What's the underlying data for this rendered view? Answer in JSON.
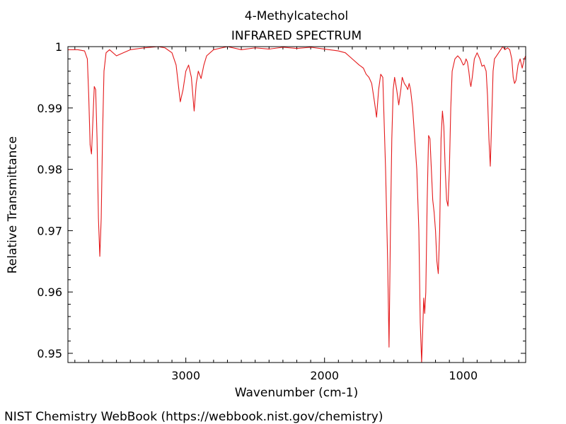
{
  "chart_data": {
    "type": "line",
    "title": "4-Methylcatechol",
    "subtitle": "INFRARED SPECTRUM",
    "xlabel": "Wavenumber (cm-1)",
    "ylabel": "Relative Transmittance",
    "xlim": [
      3850,
      550
    ],
    "ylim": [
      0.9485,
      1.0
    ],
    "x_reversed": true,
    "xticks": [
      3000,
      2000,
      1000
    ],
    "yticks": [
      0.95,
      0.96,
      0.97,
      0.98,
      0.99,
      1.0
    ],
    "ytick_labels": [
      "0.95",
      "0.96",
      "0.97",
      "0.98",
      "0.99",
      "1"
    ],
    "grid": false,
    "series": [
      {
        "color": "#e41a1c",
        "points": [
          [
            3850,
            0.9995
          ],
          [
            3780,
            0.9995
          ],
          [
            3730,
            0.9993
          ],
          [
            3710,
            0.998
          ],
          [
            3700,
            0.992
          ],
          [
            3690,
            0.984
          ],
          [
            3680,
            0.9825
          ],
          [
            3670,
            0.988
          ],
          [
            3660,
            0.9935
          ],
          [
            3650,
            0.993
          ],
          [
            3640,
            0.985
          ],
          [
            3630,
            0.972
          ],
          [
            3620,
            0.9658
          ],
          [
            3610,
            0.972
          ],
          [
            3600,
            0.986
          ],
          [
            3590,
            0.996
          ],
          [
            3575,
            0.999
          ],
          [
            3550,
            0.9995
          ],
          [
            3500,
            0.9985
          ],
          [
            3450,
            0.999
          ],
          [
            3400,
            0.9995
          ],
          [
            3300,
            0.9998
          ],
          [
            3200,
            1.0
          ],
          [
            3150,
            0.9998
          ],
          [
            3100,
            0.999
          ],
          [
            3070,
            0.997
          ],
          [
            3050,
            0.993
          ],
          [
            3040,
            0.991
          ],
          [
            3020,
            0.993
          ],
          [
            3000,
            0.996
          ],
          [
            2980,
            0.997
          ],
          [
            2960,
            0.995
          ],
          [
            2940,
            0.9895
          ],
          [
            2925,
            0.994
          ],
          [
            2910,
            0.996
          ],
          [
            2890,
            0.9948
          ],
          [
            2870,
            0.997
          ],
          [
            2850,
            0.9985
          ],
          [
            2800,
            0.9995
          ],
          [
            2700,
            1.0
          ],
          [
            2600,
            0.9995
          ],
          [
            2500,
            0.9998
          ],
          [
            2400,
            0.9996
          ],
          [
            2300,
            0.9999
          ],
          [
            2200,
            0.9997
          ],
          [
            2100,
            0.9999
          ],
          [
            2000,
            0.9996
          ],
          [
            1900,
            0.9993
          ],
          [
            1850,
            0.999
          ],
          [
            1800,
            0.998
          ],
          [
            1750,
            0.997
          ],
          [
            1720,
            0.9965
          ],
          [
            1700,
            0.9955
          ],
          [
            1680,
            0.995
          ],
          [
            1660,
            0.994
          ],
          [
            1640,
            0.991
          ],
          [
            1625,
            0.9885
          ],
          [
            1610,
            0.993
          ],
          [
            1595,
            0.9955
          ],
          [
            1580,
            0.995
          ],
          [
            1560,
            0.98
          ],
          [
            1545,
            0.965
          ],
          [
            1535,
            0.951
          ],
          [
            1525,
            0.97
          ],
          [
            1515,
            0.985
          ],
          [
            1505,
            0.993
          ],
          [
            1495,
            0.995
          ],
          [
            1480,
            0.993
          ],
          [
            1465,
            0.9905
          ],
          [
            1450,
            0.993
          ],
          [
            1440,
            0.995
          ],
          [
            1425,
            0.994
          ],
          [
            1410,
            0.9935
          ],
          [
            1400,
            0.993
          ],
          [
            1390,
            0.994
          ],
          [
            1380,
            0.993
          ],
          [
            1365,
            0.99
          ],
          [
            1350,
            0.985
          ],
          [
            1335,
            0.98
          ],
          [
            1320,
            0.97
          ],
          [
            1310,
            0.955
          ],
          [
            1300,
            0.9485
          ],
          [
            1292,
            0.954
          ],
          [
            1285,
            0.959
          ],
          [
            1278,
            0.9565
          ],
          [
            1270,
            0.96
          ],
          [
            1260,
            0.975
          ],
          [
            1250,
            0.9855
          ],
          [
            1240,
            0.985
          ],
          [
            1230,
            0.98
          ],
          [
            1220,
            0.975
          ],
          [
            1210,
            0.973
          ],
          [
            1200,
            0.97
          ],
          [
            1190,
            0.965
          ],
          [
            1180,
            0.963
          ],
          [
            1170,
            0.97
          ],
          [
            1160,
            0.985
          ],
          [
            1150,
            0.9895
          ],
          [
            1140,
            0.987
          ],
          [
            1130,
            0.98
          ],
          [
            1120,
            0.975
          ],
          [
            1110,
            0.974
          ],
          [
            1100,
            0.98
          ],
          [
            1090,
            0.99
          ],
          [
            1080,
            0.996
          ],
          [
            1060,
            0.998
          ],
          [
            1040,
            0.9985
          ],
          [
            1020,
            0.998
          ],
          [
            1000,
            0.997
          ],
          [
            990,
            0.9972
          ],
          [
            980,
            0.998
          ],
          [
            970,
            0.9975
          ],
          [
            960,
            0.996
          ],
          [
            950,
            0.994
          ],
          [
            945,
            0.9935
          ],
          [
            935,
            0.995
          ],
          [
            920,
            0.998
          ],
          [
            900,
            0.999
          ],
          [
            880,
            0.998
          ],
          [
            865,
            0.9968
          ],
          [
            850,
            0.997
          ],
          [
            835,
            0.996
          ],
          [
            825,
            0.992
          ],
          [
            815,
            0.985
          ],
          [
            805,
            0.9805
          ],
          [
            795,
            0.988
          ],
          [
            785,
            0.996
          ],
          [
            775,
            0.998
          ],
          [
            760,
            0.9985
          ],
          [
            745,
            0.999
          ],
          [
            730,
            0.9995
          ],
          [
            715,
            1.0
          ],
          [
            700,
            0.9995
          ],
          [
            680,
            0.9998
          ],
          [
            665,
            0.9995
          ],
          [
            650,
            0.998
          ],
          [
            640,
            0.995
          ],
          [
            630,
            0.994
          ],
          [
            620,
            0.9945
          ],
          [
            605,
            0.997
          ],
          [
            590,
            0.998
          ],
          [
            575,
            0.9965
          ],
          [
            560,
            0.998
          ],
          [
            550,
            0.9985
          ]
        ]
      }
    ]
  },
  "footer": {
    "text": "NIST Chemistry WebBook (https://webbook.nist.gov/chemistry)"
  }
}
